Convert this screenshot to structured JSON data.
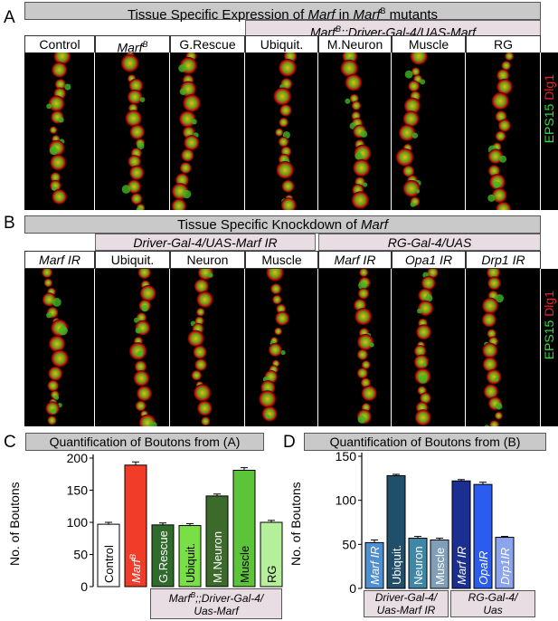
{
  "panelA": {
    "letter": "A",
    "banner_pre": "Tissue Specific Expression of ",
    "banner_marf": "Marf",
    "banner_mid": " in ",
    "banner_marf2": "Marf",
    "banner_sup": "B",
    "banner_post": " mutants",
    "subbanner": "Marf",
    "subbanner_sup": "B",
    "subbanner_post": ";;Driver-Gal-4/UAS-Marf",
    "labels": [
      {
        "text": "Control",
        "italic": false,
        "sup": ""
      },
      {
        "text": "Marf",
        "italic": true,
        "sup": "B"
      },
      {
        "text": "G.Rescue",
        "italic": false,
        "sup": ""
      },
      {
        "text": "Ubiquit.",
        "italic": false,
        "sup": ""
      },
      {
        "text": "M.Neuron",
        "italic": false,
        "sup": ""
      },
      {
        "text": "Muscle",
        "italic": false,
        "sup": ""
      },
      {
        "text": "RG",
        "italic": false,
        "sup": ""
      }
    ],
    "stain_green": "EPS15",
    "stain_red": " Dlg1"
  },
  "panelB": {
    "letter": "B",
    "banner_pre": "Tissue Specific  Knockdown of ",
    "banner_marf": "Marf",
    "sub1": "Driver-Gal-4/UAS-Marf IR",
    "sub2": "RG-Gal-4/UAS",
    "labels": [
      {
        "text": "Marf IR",
        "italic": true
      },
      {
        "text": "Ubiquit.",
        "italic": false
      },
      {
        "text": "Neuron",
        "italic": false
      },
      {
        "text": "Muscle",
        "italic": false
      },
      {
        "text": "Marf IR",
        "italic": true
      },
      {
        "text": "Opa1 IR",
        "italic": true
      },
      {
        "text": "Drp1 IR",
        "italic": true
      }
    ],
    "stain_green": "EPS15",
    "stain_red": " Dlg1"
  },
  "panelC": {
    "letter": "C",
    "title": "Quantification of Boutons from (A)",
    "group_line1_a": "Marf",
    "group_line1_sup": "B",
    "group_line1_b": ";;Driver-Gal-4/",
    "group_line2": "Uas-Marf"
  },
  "panelD": {
    "letter": "D",
    "title": "Quantification of Boutons from (B)",
    "group1_line1": "Driver-Gal-4/",
    "group1_line2": "Uas-Marf IR",
    "group2_line1": "RG-Gal-4/",
    "group2_line2": "Uas"
  },
  "chart_data": [
    {
      "type": "bar",
      "ylabel": "No. of Boutons",
      "ylim": [
        0,
        200
      ],
      "yticks": [
        0,
        50,
        100,
        150,
        200
      ],
      "categories": [
        "Control",
        "Marf",
        "G.Rescue",
        "Ubiquit.",
        "M.Neuron",
        "Muscle",
        "RG"
      ],
      "category_sup": [
        "",
        "B",
        "",
        "",
        "",
        "",
        ""
      ],
      "category_italic": [
        false,
        true,
        false,
        false,
        false,
        false,
        false
      ],
      "values": [
        97,
        189,
        96,
        95,
        141,
        181,
        100
      ],
      "errors": [
        3,
        5,
        3,
        3,
        3,
        4,
        3
      ],
      "colors": [
        "#ffffff",
        "#f03c28",
        "#2f6b2a",
        "#78e045",
        "#3c6a2a",
        "#5cc438",
        "#b6ef9a"
      ],
      "label_colors": [
        "#000000",
        "#ffffff",
        "#ffffff",
        "#000000",
        "#ffffff",
        "#000000",
        "#000000"
      ]
    },
    {
      "type": "bar",
      "ylabel": "No. of Boutons",
      "ylim": [
        0,
        150
      ],
      "yticks": [
        0,
        50,
        100,
        150
      ],
      "categories": [
        "Marf IR",
        "Ubiquit.",
        "Neuron",
        "Muscle",
        "Marf IR",
        "OpaIR",
        "Drp1IR"
      ],
      "category_italic": [
        true,
        false,
        false,
        false,
        true,
        true,
        true
      ],
      "values": [
        52,
        128,
        57,
        55,
        122,
        118,
        58
      ],
      "errors": [
        3,
        1.5,
        2,
        2,
        1.5,
        2.5,
        1
      ],
      "colors": [
        "#4d8fd0",
        "#1f4f6b",
        "#3e87a6",
        "#7f9fb9",
        "#1a2f91",
        "#2a5cf0",
        "#8aa4ee"
      ],
      "label_colors": [
        "#ffffff",
        "#ffffff",
        "#ffffff",
        "#ffffff",
        "#ffffff",
        "#ffffff",
        "#ffffff"
      ]
    }
  ]
}
